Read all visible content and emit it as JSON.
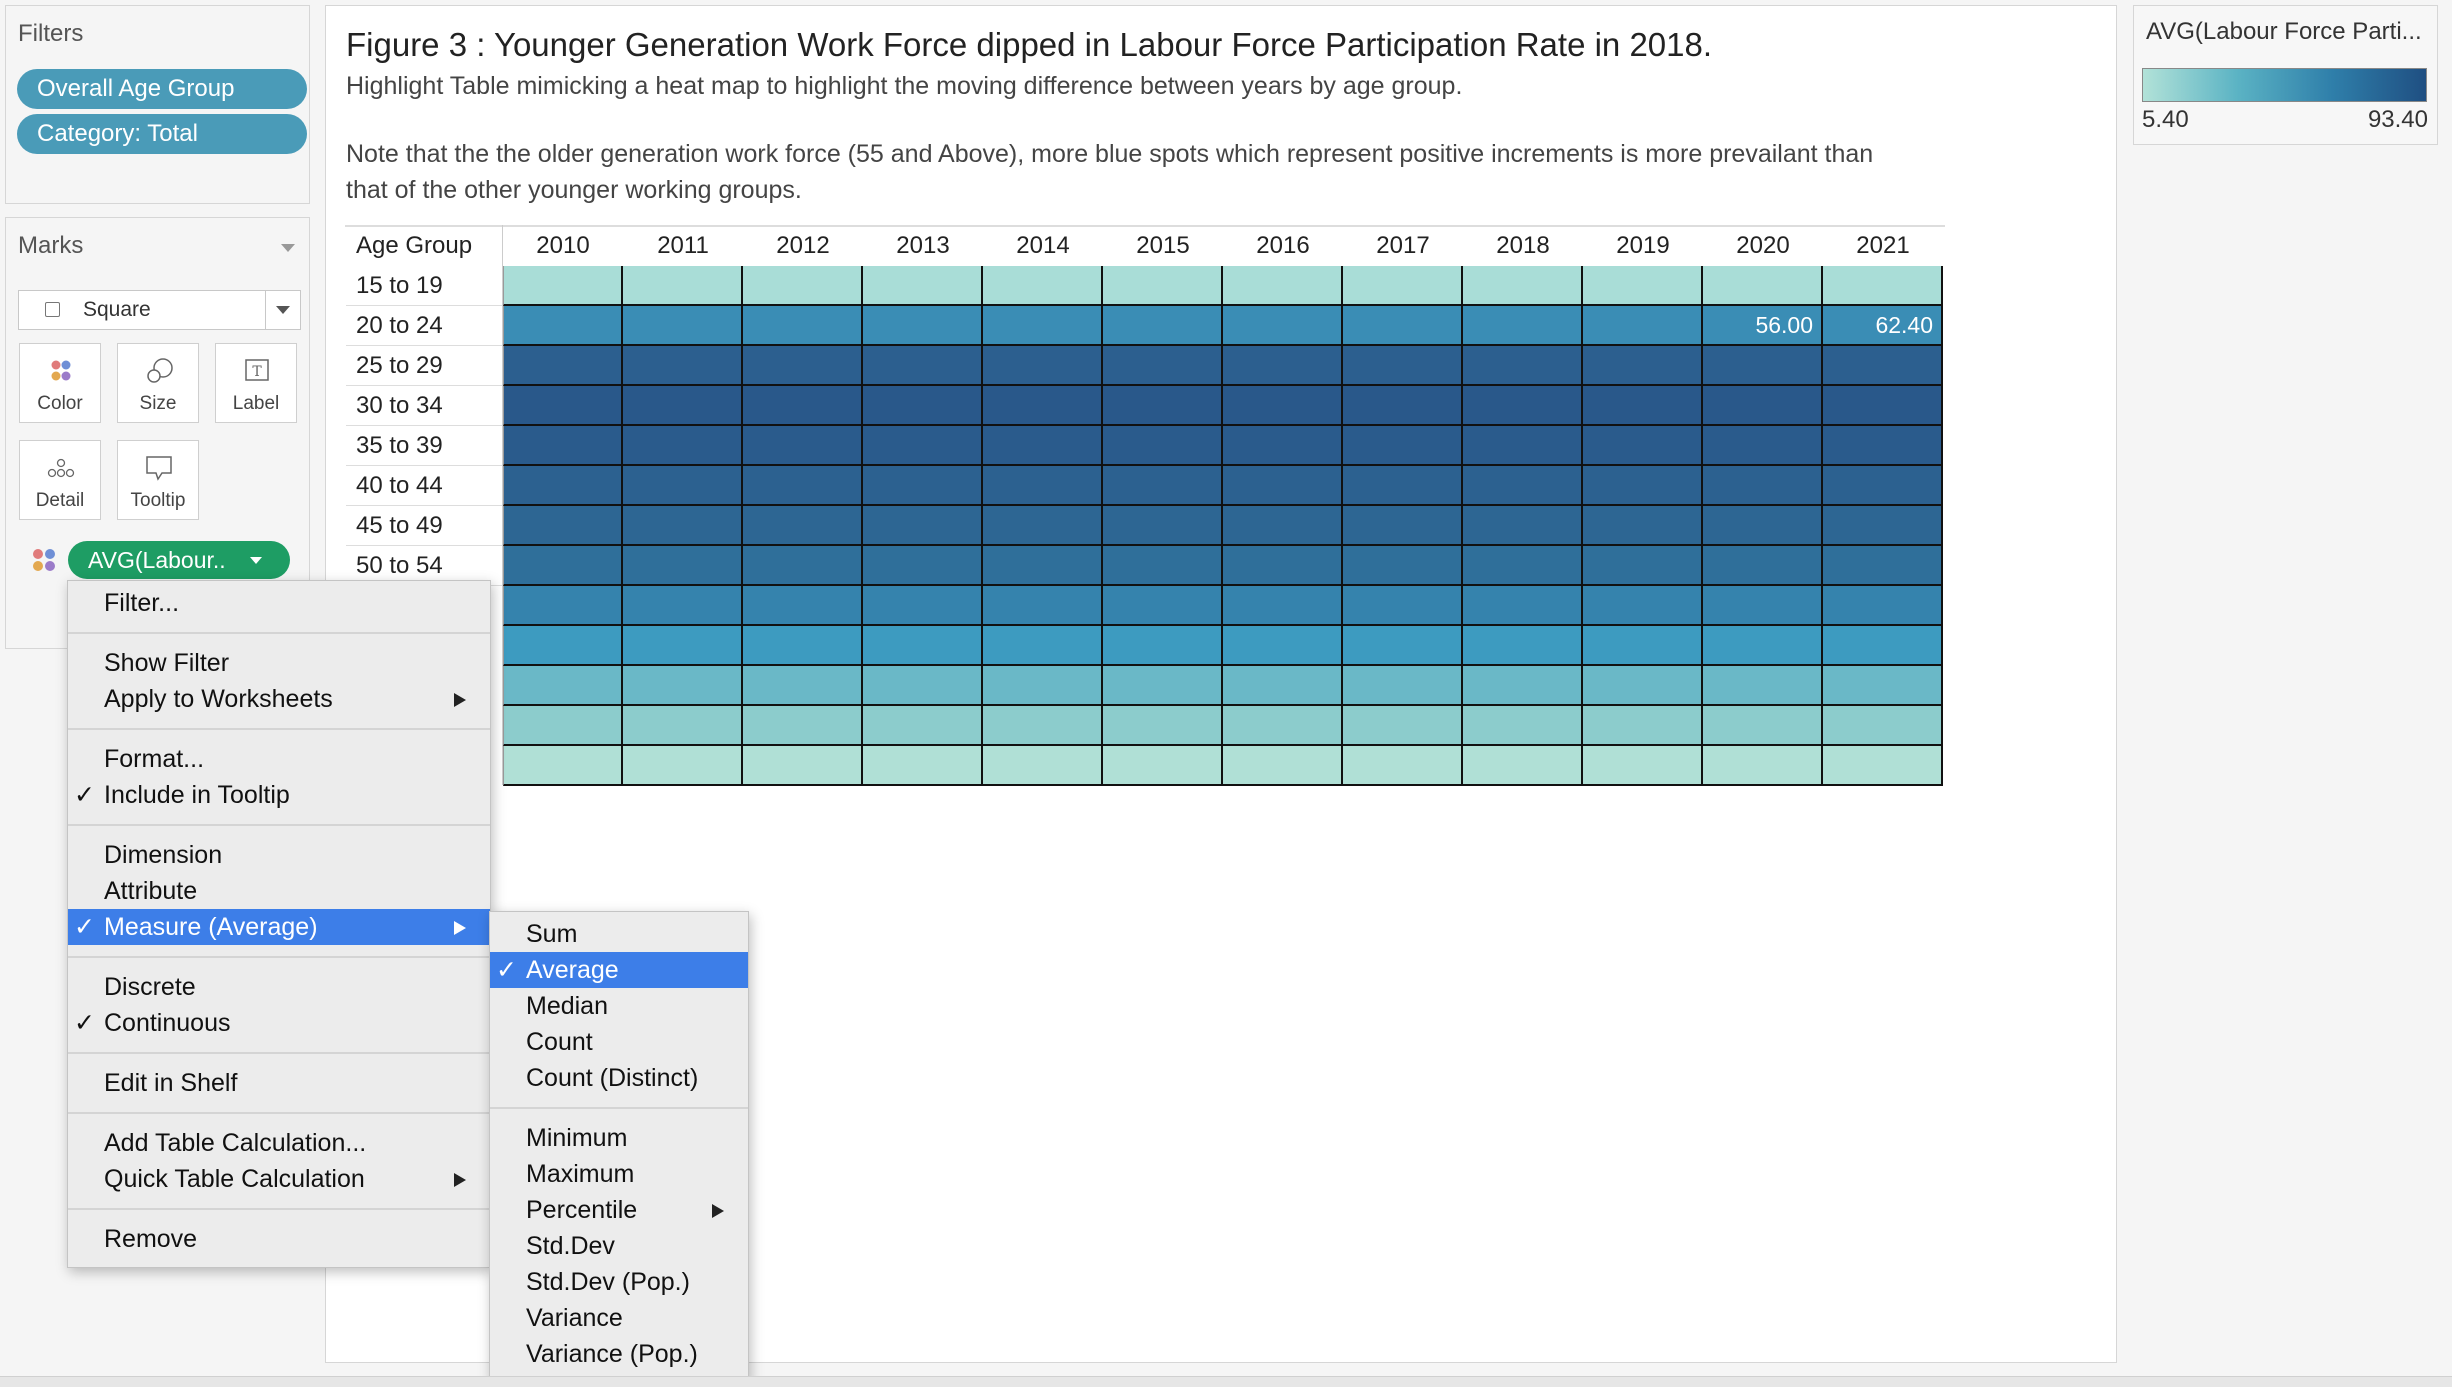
{
  "filters": {
    "title": "Filters",
    "items": [
      "Overall Age Group",
      "Category: Total"
    ]
  },
  "marks": {
    "title": "Marks",
    "mark_type": "Square",
    "buttons": [
      "Color",
      "Size",
      "Label",
      "Detail",
      "Tooltip"
    ],
    "measure_pill": "AVG(Labour.."
  },
  "sheet": {
    "title": "Figure 3 : Younger Generation Work Force dipped in Labour Force Participation Rate in 2018.",
    "subtitle": "Highlight Table mimicking a heat map to highlight the moving difference between years by age group.",
    "note_line1": "Note that the the older generation work force (55 and Above), more blue spots which represent positive increments is more  prevailant than",
    "note_line2": "that of the other younger working groups."
  },
  "table": {
    "header_age": "Age Group",
    "years": [
      "2010",
      "2011",
      "2012",
      "2013",
      "2014",
      "2015",
      "2016",
      "2017",
      "2018",
      "2019",
      "2020",
      "2021"
    ],
    "row_labels": [
      "15 to 19",
      "20 to 24",
      "25 to 29",
      "30 to 34",
      "35 to 39",
      "40 to 44",
      "45 to 49",
      "50 to 54"
    ],
    "visible_values": {
      "20 to 24": {
        "2020": "56.00",
        "2021": "62.40"
      }
    },
    "row_colors": [
      "#a9ddd7",
      "#3a8db5",
      "#2c5f8f",
      "#29588a",
      "#2a5b8c",
      "#2c6190",
      "#2d6693",
      "#2f6f9a",
      "#3583ad",
      "#3d9bc0",
      "#6ab8c7",
      "#8ccccc",
      "#b0e0d6"
    ]
  },
  "legend": {
    "title": "AVG(Labour Force Parti...",
    "min": "5.40",
    "max": "93.40"
  },
  "context_menu": {
    "items": [
      {
        "label": "Filter...",
        "checked": false,
        "submenu": false
      },
      {
        "sep": true
      },
      {
        "label": "Show Filter",
        "checked": false,
        "submenu": false
      },
      {
        "label": "Apply to Worksheets",
        "checked": false,
        "submenu": true
      },
      {
        "sep": true
      },
      {
        "label": "Format...",
        "checked": false,
        "submenu": false
      },
      {
        "label": "Include in Tooltip",
        "checked": true,
        "submenu": false
      },
      {
        "sep": true
      },
      {
        "label": "Dimension",
        "checked": false,
        "submenu": false
      },
      {
        "label": "Attribute",
        "checked": false,
        "submenu": false
      },
      {
        "label": "Measure (Average)",
        "checked": true,
        "submenu": true,
        "selected": true
      },
      {
        "sep": true
      },
      {
        "label": "Discrete",
        "checked": false,
        "submenu": false
      },
      {
        "label": "Continuous",
        "checked": true,
        "submenu": false
      },
      {
        "sep": true
      },
      {
        "label": "Edit in Shelf",
        "checked": false,
        "submenu": false
      },
      {
        "sep": true
      },
      {
        "label": "Add Table Calculation...",
        "checked": false,
        "submenu": false
      },
      {
        "label": "Quick Table Calculation",
        "checked": false,
        "submenu": true
      },
      {
        "sep": true
      },
      {
        "label": "Remove",
        "checked": false,
        "submenu": false
      }
    ]
  },
  "sub_menu": {
    "items": [
      {
        "label": "Sum",
        "checked": false,
        "submenu": false
      },
      {
        "label": "Average",
        "checked": true,
        "submenu": false,
        "selected": true
      },
      {
        "label": "Median",
        "checked": false,
        "submenu": false
      },
      {
        "label": "Count",
        "checked": false,
        "submenu": false
      },
      {
        "label": "Count (Distinct)",
        "checked": false,
        "submenu": false
      },
      {
        "sep": true
      },
      {
        "label": "Minimum",
        "checked": false,
        "submenu": false
      },
      {
        "label": "Maximum",
        "checked": false,
        "submenu": false
      },
      {
        "label": "Percentile",
        "checked": false,
        "submenu": true
      },
      {
        "label": "Std.Dev",
        "checked": false,
        "submenu": false
      },
      {
        "label": "Std.Dev (Pop.)",
        "checked": false,
        "submenu": false
      },
      {
        "label": "Variance",
        "checked": false,
        "submenu": false
      },
      {
        "label": "Variance (Pop.)",
        "checked": false,
        "submenu": false
      }
    ]
  },
  "check_glyph": "✓"
}
